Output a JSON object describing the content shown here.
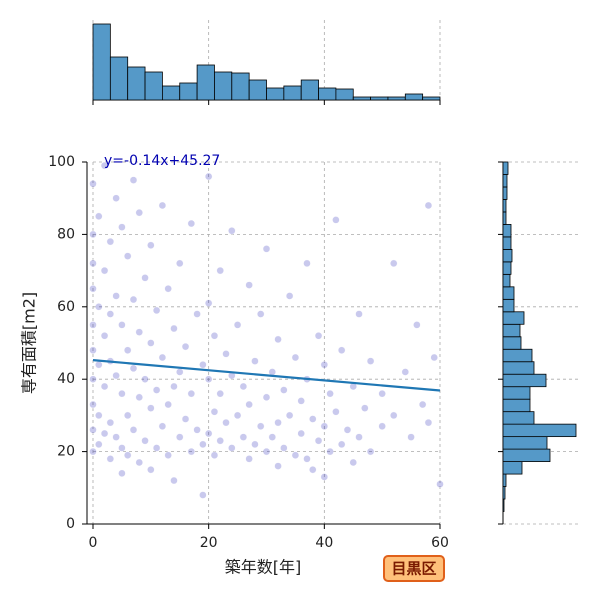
{
  "chart_data": [
    {
      "type": "scatter",
      "xlabel": "築年数[年]",
      "ylabel": "専有面積[m2]",
      "annotation": "y=-0.14x+45.27",
      "badge": "目黒区",
      "regression": {
        "slope": -0.14,
        "intercept": 45.27,
        "color": "#1f77b4"
      },
      "color": "#2828b8",
      "alpha": 0.25,
      "xlim": [
        0,
        60
      ],
      "ylim": [
        0,
        100
      ],
      "xticks": [
        0,
        20,
        40,
        60
      ],
      "yticks": [
        0,
        20,
        40,
        60,
        80,
        100
      ],
      "grid": true,
      "x": [
        0,
        0,
        0,
        0,
        0,
        0,
        0,
        0,
        0,
        0,
        1,
        1,
        1,
        1,
        1,
        2,
        2,
        2,
        2,
        2,
        3,
        3,
        3,
        3,
        3,
        4,
        4,
        4,
        4,
        5,
        5,
        5,
        5,
        5,
        6,
        6,
        6,
        6,
        7,
        7,
        7,
        7,
        8,
        8,
        8,
        8,
        9,
        9,
        9,
        10,
        10,
        10,
        10,
        11,
        11,
        11,
        12,
        12,
        12,
        13,
        13,
        13,
        14,
        14,
        14,
        15,
        15,
        15,
        16,
        16,
        17,
        17,
        17,
        18,
        18,
        19,
        19,
        19,
        20,
        20,
        20,
        20,
        21,
        21,
        21,
        22,
        22,
        22,
        23,
        23,
        24,
        24,
        24,
        25,
        25,
        26,
        26,
        27,
        27,
        27,
        28,
        28,
        29,
        29,
        30,
        30,
        30,
        31,
        31,
        32,
        32,
        32,
        33,
        33,
        34,
        34,
        35,
        35,
        36,
        36,
        37,
        37,
        37,
        38,
        38,
        39,
        39,
        40,
        40,
        40,
        41,
        41,
        42,
        42,
        43,
        43,
        44,
        45,
        45,
        46,
        46,
        47,
        48,
        48,
        50,
        50,
        52,
        52,
        54,
        55,
        56,
        57,
        58,
        58,
        59,
        60
      ],
      "y": [
        94,
        80,
        72,
        65,
        55,
        48,
        40,
        33,
        26,
        20,
        85,
        60,
        44,
        30,
        22,
        99,
        70,
        52,
        38,
        25,
        78,
        58,
        45,
        28,
        18,
        90,
        63,
        41,
        24,
        82,
        55,
        36,
        21,
        14,
        74,
        48,
        30,
        19,
        95,
        62,
        43,
        26,
        86,
        53,
        35,
        17,
        68,
        40,
        23,
        77,
        50,
        32,
        15,
        59,
        37,
        21,
        88,
        46,
        27,
        65,
        33,
        19,
        54,
        38,
        12,
        72,
        42,
        24,
        49,
        29,
        83,
        36,
        20,
        58,
        26,
        44,
        22,
        8,
        96,
        61,
        40,
        25,
        52,
        31,
        19,
        70,
        36,
        23,
        47,
        28,
        81,
        41,
        21,
        55,
        30,
        38,
        24,
        66,
        33,
        18,
        45,
        22,
        58,
        27,
        76,
        35,
        20,
        42,
        24,
        51,
        28,
        16,
        37,
        21,
        63,
        30,
        46,
        19,
        34,
        25,
        72,
        40,
        18,
        29,
        15,
        52,
        23,
        44,
        27,
        13,
        36,
        20,
        84,
        31,
        48,
        22,
        26,
        38,
        17,
        58,
        24,
        32,
        45,
        20,
        36,
        27,
        72,
        30,
        42,
        24,
        55,
        33,
        88,
        28,
        46,
        11
      ]
    },
    {
      "type": "histogram",
      "orientation": "vertical",
      "color": "#5599c8",
      "bins": [
        0,
        3,
        6,
        9,
        12,
        15,
        18,
        21,
        24,
        27,
        30,
        33,
        36,
        39,
        42,
        45,
        48,
        51,
        54,
        57,
        60
      ],
      "counts": [
        76,
        43,
        33,
        28,
        14,
        17,
        35,
        28,
        27,
        20,
        12,
        14,
        20,
        12,
        11,
        3,
        3,
        3,
        6,
        3
      ]
    },
    {
      "type": "histogram",
      "orientation": "horizontal",
      "color": "#5599c8",
      "bins": [
        0,
        3.448,
        6.897,
        10.345,
        13.793,
        17.241,
        20.69,
        24.138,
        27.586,
        31.034,
        34.483,
        37.931,
        41.379,
        44.828,
        48.276,
        51.724,
        55.172,
        58.621,
        62.069,
        65.517,
        68.966,
        72.414,
        75.862,
        79.31,
        82.759,
        86.207,
        89.655,
        93.103,
        96.552,
        100
      ],
      "counts": [
        0,
        1,
        2,
        3,
        19,
        47,
        44,
        73,
        31,
        27,
        27,
        43,
        31,
        29,
        18,
        17,
        21,
        11,
        11,
        7,
        8,
        9,
        8,
        8,
        3,
        3,
        4,
        4,
        5
      ]
    }
  ]
}
